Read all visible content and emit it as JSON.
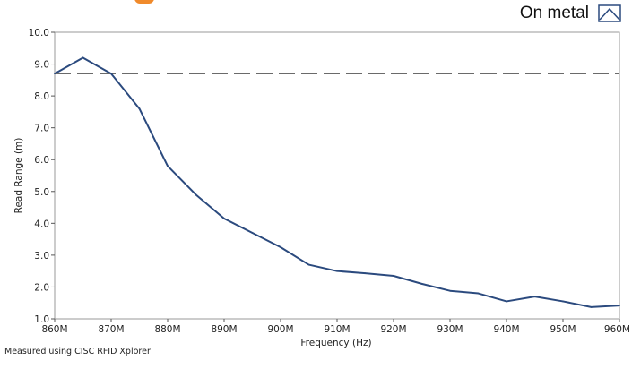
{
  "chart_data": {
    "type": "line",
    "title": "",
    "xlabel": "Frequency (Hz)",
    "ylabel": "Read Range (m)",
    "x": [
      860,
      865,
      870,
      875,
      880,
      885,
      890,
      895,
      900,
      905,
      910,
      915,
      920,
      925,
      930,
      935,
      940,
      945,
      950,
      955,
      960
    ],
    "series": [
      {
        "name": "On metal",
        "color": "#2b4a7e",
        "values": [
          8.7,
          9.2,
          8.7,
          7.6,
          5.8,
          4.9,
          4.15,
          3.7,
          3.25,
          2.7,
          2.5,
          2.43,
          2.35,
          2.1,
          1.88,
          1.8,
          1.55,
          1.7,
          1.55,
          1.37,
          1.42
        ]
      }
    ],
    "reference_line": {
      "y": 8.7,
      "style": "dashed",
      "color": "#555555"
    },
    "xlim": [
      860,
      960
    ],
    "ylim": [
      1.0,
      10.0
    ],
    "x_ticks": [
      860,
      870,
      880,
      890,
      900,
      910,
      920,
      930,
      940,
      950,
      960
    ],
    "x_tick_labels": [
      "860M",
      "870M",
      "880M",
      "890M",
      "900M",
      "910M",
      "920M",
      "930M",
      "940M",
      "950M",
      "960M"
    ],
    "y_ticks": [
      1,
      2,
      3,
      4,
      5,
      6,
      7,
      8,
      9,
      10
    ],
    "y_tick_labels": [
      "1.0",
      "2.0",
      "3.0",
      "4.0",
      "5.0",
      "6.0",
      "7.0",
      "8.0",
      "9.0",
      "10.0"
    ],
    "grid": false,
    "legend_position": "top-right"
  },
  "legend": {
    "label": "On metal"
  },
  "footnote": "Measured using CISC RFID Xplorer"
}
